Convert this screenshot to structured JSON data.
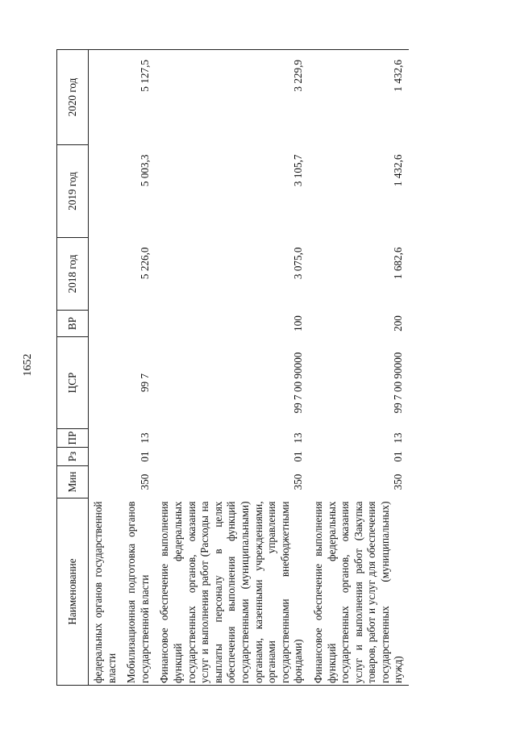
{
  "page_number": "1652",
  "headers": [
    "Наименование",
    "Мин",
    "Рз",
    "ПР",
    "ЦСР",
    "ВР",
    "2018 год",
    "2019 год",
    "2020 год"
  ],
  "rows": [
    {
      "name": "федеральных органов государственной власти",
      "min": "",
      "rz": "",
      "pr": "",
      "csr": "",
      "vr": "",
      "y2018": "",
      "y2019": "",
      "y2020": ""
    },
    {
      "name": "Мобилизационная подготовка органов государственной власти",
      "min": "350",
      "rz": "01",
      "pr": "13",
      "csr": "99 7",
      "vr": "",
      "y2018": "5 226,0",
      "y2019": "5 003,3",
      "y2020": "5 127,5"
    },
    {
      "name": "Финансовое обеспечение выполнения функций федеральных государственных органов, оказания услуг и выполнения работ (Расходы на выплаты персоналу в целях обеспечения выполнения функций государственными (муниципальными) органами, казенными учреждениями, органами управления государственными внебюджетными фондами)",
      "min": "350",
      "rz": "01",
      "pr": "13",
      "csr": "99 7 00 90000",
      "vr": "100",
      "y2018": "3 075,0",
      "y2019": "3 105,7",
      "y2020": "3 229,9"
    },
    {
      "name": "Финансовое обеспечение выполнения функций федеральных государственных органов, оказания услуг и выполнения работ (Закупка товаров, работ и услуг для обеспечения государственных (муниципальных) нужд)",
      "min": "350",
      "rz": "01",
      "pr": "13",
      "csr": "99 7 00 90000",
      "vr": "200",
      "y2018": "1 682,6",
      "y2019": "1 432,6",
      "y2020": "1 432,6"
    }
  ]
}
